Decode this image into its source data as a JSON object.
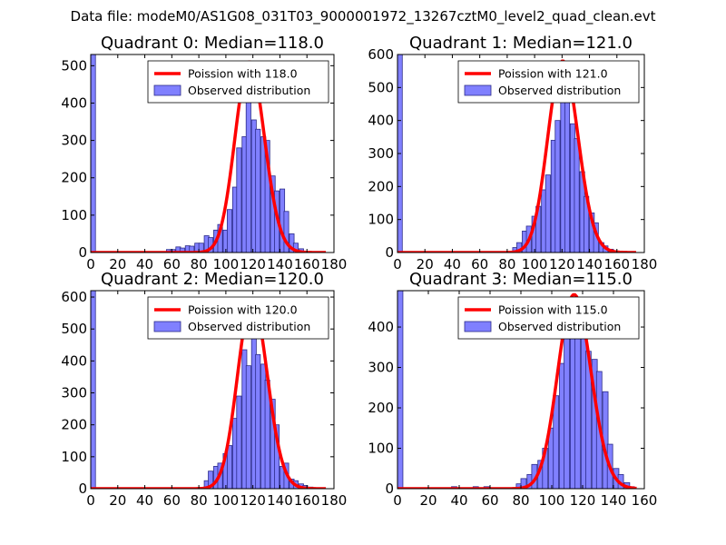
{
  "suptitle": "Data file: modeM0/AS1G08_031T03_9000001972_13267cztM0_level2_quad_clean.evt",
  "colors": {
    "bars": "#8080ff",
    "bar_edge": "#2b2b8a",
    "poisson": "#ff0000",
    "axes": "#000000"
  },
  "chart_data": [
    {
      "type": "bar",
      "title": "Quadrant 0: Median=118.0",
      "median": 118.0,
      "bin_width": 3.5,
      "xlim": [
        0,
        180
      ],
      "ylim": [
        0,
        530
      ],
      "xticks": [
        0,
        20,
        40,
        60,
        80,
        100,
        120,
        140,
        160,
        180
      ],
      "yticks": [
        0,
        100,
        200,
        300,
        400,
        500
      ],
      "legend": [
        "Poission with 118.0",
        "Observed distribution"
      ],
      "bins": [
        [
          0,
          530
        ],
        [
          56,
          8
        ],
        [
          59,
          8
        ],
        [
          63,
          15
        ],
        [
          66,
          12
        ],
        [
          70,
          18
        ],
        [
          73,
          17
        ],
        [
          77,
          25
        ],
        [
          80,
          25
        ],
        [
          84,
          45
        ],
        [
          87,
          40
        ],
        [
          91,
          60
        ],
        [
          94,
          75
        ],
        [
          98,
          60
        ],
        [
          101,
          115
        ],
        [
          105,
          175
        ],
        [
          108,
          280
        ],
        [
          112,
          310
        ],
        [
          115,
          410
        ],
        [
          119,
          355
        ],
        [
          122,
          330
        ],
        [
          126,
          310
        ],
        [
          129,
          300
        ],
        [
          133,
          205
        ],
        [
          136,
          165
        ],
        [
          140,
          170
        ],
        [
          143,
          110
        ],
        [
          147,
          50
        ],
        [
          150,
          25
        ],
        [
          154,
          10
        ],
        [
          157,
          3
        ]
      ],
      "poisson_peak": 510
    },
    {
      "type": "bar",
      "title": "Quadrant 1: Median=121.0",
      "median": 121.0,
      "bin_width": 3.5,
      "xlim": [
        0,
        180
      ],
      "ylim": [
        0,
        600
      ],
      "xticks": [
        0,
        20,
        40,
        60,
        80,
        100,
        120,
        140,
        160,
        180
      ],
      "yticks": [
        0,
        100,
        200,
        300,
        400,
        500,
        600
      ],
      "legend": [
        "Poission with 121.0",
        "Observed distribution"
      ],
      "bins": [
        [
          0,
          600
        ],
        [
          84,
          15
        ],
        [
          87,
          30
        ],
        [
          91,
          65
        ],
        [
          94,
          80
        ],
        [
          98,
          110
        ],
        [
          101,
          140
        ],
        [
          105,
          190
        ],
        [
          108,
          235
        ],
        [
          112,
          340
        ],
        [
          115,
          400
        ],
        [
          119,
          460
        ],
        [
          122,
          460
        ],
        [
          126,
          390
        ],
        [
          129,
          345
        ],
        [
          133,
          245
        ],
        [
          136,
          170
        ],
        [
          140,
          120
        ],
        [
          143,
          90
        ],
        [
          147,
          30
        ],
        [
          150,
          20
        ],
        [
          154,
          10
        ],
        [
          157,
          5
        ]
      ],
      "poisson_peak": 580
    },
    {
      "type": "bar",
      "title": "Quadrant 2: Median=120.0",
      "median": 120.0,
      "bin_width": 3.5,
      "xlim": [
        0,
        180
      ],
      "ylim": [
        0,
        620
      ],
      "xticks": [
        0,
        20,
        40,
        60,
        80,
        100,
        120,
        140,
        160,
        180
      ],
      "yticks": [
        0,
        100,
        200,
        300,
        400,
        500,
        600
      ],
      "legend": [
        "Poission with 120.0",
        "Observed distribution"
      ],
      "bins": [
        [
          0,
          620
        ],
        [
          84,
          25
        ],
        [
          87,
          55
        ],
        [
          91,
          70
        ],
        [
          94,
          80
        ],
        [
          98,
          110
        ],
        [
          101,
          135
        ],
        [
          105,
          220
        ],
        [
          108,
          290
        ],
        [
          112,
          435
        ],
        [
          115,
          385
        ],
        [
          119,
          520
        ],
        [
          122,
          420
        ],
        [
          126,
          390
        ],
        [
          129,
          340
        ],
        [
          133,
          280
        ],
        [
          136,
          200
        ],
        [
          140,
          70
        ],
        [
          143,
          80
        ],
        [
          147,
          30
        ],
        [
          150,
          25
        ],
        [
          154,
          15
        ],
        [
          157,
          10
        ],
        [
          161,
          5
        ]
      ],
      "poisson_peak": 590
    },
    {
      "type": "bar",
      "title": "Quadrant 3: Median=115.0",
      "median": 115.0,
      "bin_width": 3.5,
      "xlim": [
        0,
        160
      ],
      "ylim": [
        0,
        490
      ],
      "xticks": [
        0,
        20,
        40,
        60,
        80,
        100,
        120,
        140,
        160
      ],
      "yticks": [
        0,
        100,
        200,
        300,
        400
      ],
      "legend": [
        "Poission with 115.0",
        "Observed distribution"
      ],
      "bins": [
        [
          0,
          490
        ],
        [
          35,
          5
        ],
        [
          49,
          5
        ],
        [
          56,
          5
        ],
        [
          77,
          12
        ],
        [
          80,
          25
        ],
        [
          84,
          35
        ],
        [
          87,
          60
        ],
        [
          91,
          70
        ],
        [
          94,
          100
        ],
        [
          98,
          150
        ],
        [
          101,
          230
        ],
        [
          105,
          310
        ],
        [
          108,
          400
        ],
        [
          112,
          455
        ],
        [
          115,
          470
        ],
        [
          119,
          410
        ],
        [
          122,
          340
        ],
        [
          126,
          320
        ],
        [
          129,
          290
        ],
        [
          133,
          240
        ],
        [
          136,
          110
        ],
        [
          140,
          50
        ],
        [
          143,
          35
        ],
        [
          147,
          15
        ],
        [
          150,
          5
        ]
      ],
      "poisson_peak": 480
    }
  ]
}
